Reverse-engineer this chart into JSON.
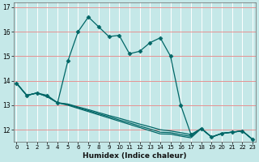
{
  "xlabel": "Humidex (Indice chaleur)",
  "bg_color": "#c5e8e8",
  "grid_color_white": "#ffffff",
  "grid_color_red": "#e08080",
  "line_color": "#006666",
  "series_main": {
    "x": [
      0,
      1,
      2,
      3,
      4,
      5,
      6,
      7,
      8,
      9,
      10,
      11,
      12,
      13,
      14,
      15,
      16,
      17,
      18,
      19,
      20,
      21,
      22,
      23
    ],
    "y": [
      13.9,
      13.4,
      13.5,
      13.4,
      13.1,
      14.8,
      16.0,
      16.6,
      16.2,
      15.8,
      15.85,
      15.1,
      15.2,
      15.55,
      15.75,
      15.0,
      13.0,
      11.8,
      12.05,
      11.7,
      11.85,
      11.9,
      11.95,
      11.6
    ]
  },
  "series_flat": [
    {
      "x": [
        0,
        1,
        2,
        3,
        4,
        5,
        6,
        7,
        8,
        9,
        10,
        11,
        12,
        13,
        14,
        15,
        16,
        17,
        18,
        19,
        20,
        21,
        22,
        23
      ],
      "y": [
        13.9,
        13.4,
        13.5,
        13.35,
        13.1,
        13.05,
        12.93,
        12.82,
        12.7,
        12.58,
        12.47,
        12.35,
        12.23,
        12.12,
        12.0,
        11.95,
        11.88,
        11.8,
        12.05,
        11.7,
        11.85,
        11.9,
        11.95,
        11.6
      ]
    },
    {
      "x": [
        0,
        1,
        2,
        3,
        4,
        5,
        6,
        7,
        8,
        9,
        10,
        11,
        12,
        13,
        14,
        15,
        16,
        17,
        18,
        19,
        20,
        21,
        22,
        23
      ],
      "y": [
        13.9,
        13.4,
        13.5,
        13.35,
        13.1,
        13.03,
        12.9,
        12.78,
        12.65,
        12.53,
        12.4,
        12.28,
        12.15,
        12.03,
        11.9,
        11.88,
        11.8,
        11.73,
        12.05,
        11.7,
        11.85,
        11.9,
        11.95,
        11.6
      ]
    },
    {
      "x": [
        0,
        1,
        2,
        3,
        4,
        5,
        6,
        7,
        8,
        9,
        10,
        11,
        12,
        13,
        14,
        15,
        16,
        17,
        18,
        19,
        20,
        21,
        22,
        23
      ],
      "y": [
        13.9,
        13.4,
        13.5,
        13.35,
        13.1,
        13.0,
        12.87,
        12.74,
        12.61,
        12.48,
        12.35,
        12.22,
        12.09,
        11.96,
        11.83,
        11.82,
        11.74,
        11.67,
        12.05,
        11.7,
        11.85,
        11.9,
        11.95,
        11.6
      ]
    }
  ],
  "ylim": [
    11.5,
    17.2
  ],
  "xlim": [
    -0.3,
    23.3
  ],
  "yticks": [
    12,
    13,
    14,
    15,
    16,
    17
  ],
  "xticks": [
    0,
    1,
    2,
    3,
    4,
    5,
    6,
    7,
    8,
    9,
    10,
    11,
    12,
    13,
    14,
    15,
    16,
    17,
    18,
    19,
    20,
    21,
    22,
    23
  ],
  "marker": "D",
  "markersize": 2.5,
  "linewidth": 0.9
}
